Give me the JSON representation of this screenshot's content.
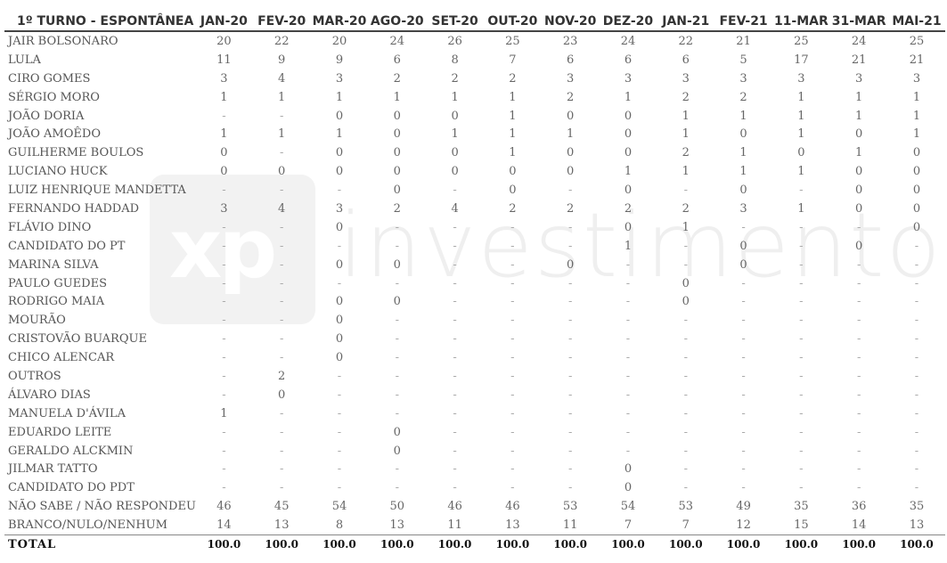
{
  "table": {
    "title": "1º TURNO - ESPONTÂNEA",
    "columns": [
      "JAN-20",
      "FEV-20",
      "MAR-20",
      "AGO-20",
      "SET-20",
      "OUT-20",
      "NOV-20",
      "DEZ-20",
      "JAN-21",
      "FEV-21",
      "11-MAR",
      "31-MAR",
      "MAI-21"
    ],
    "rows": [
      {
        "name": "JAIR BOLSONARO",
        "values": [
          "20",
          "22",
          "20",
          "24",
          "26",
          "25",
          "23",
          "24",
          "22",
          "21",
          "25",
          "24",
          "25"
        ]
      },
      {
        "name": "LULA",
        "values": [
          "11",
          "9",
          "9",
          "6",
          "8",
          "7",
          "6",
          "6",
          "6",
          "5",
          "17",
          "21",
          "21"
        ]
      },
      {
        "name": "CIRO GOMES",
        "values": [
          "3",
          "4",
          "3",
          "2",
          "2",
          "2",
          "3",
          "3",
          "3",
          "3",
          "3",
          "3",
          "3"
        ]
      },
      {
        "name": "SÉRGIO MORO",
        "values": [
          "1",
          "1",
          "1",
          "1",
          "1",
          "1",
          "2",
          "1",
          "2",
          "2",
          "1",
          "1",
          "1"
        ]
      },
      {
        "name": "JOÃO DORIA",
        "values": [
          "-",
          "-",
          "0",
          "0",
          "0",
          "1",
          "0",
          "0",
          "1",
          "1",
          "1",
          "1",
          "1"
        ]
      },
      {
        "name": "JOÃO AMOÊDO",
        "values": [
          "1",
          "1",
          "1",
          "0",
          "1",
          "1",
          "1",
          "0",
          "1",
          "0",
          "1",
          "0",
          "1"
        ]
      },
      {
        "name": "GUILHERME BOULOS",
        "values": [
          "0",
          "-",
          "0",
          "0",
          "0",
          "1",
          "0",
          "0",
          "2",
          "1",
          "0",
          "1",
          "0"
        ]
      },
      {
        "name": "LUCIANO HUCK",
        "values": [
          "0",
          "0",
          "0",
          "0",
          "0",
          "0",
          "0",
          "1",
          "1",
          "1",
          "1",
          "0",
          "0"
        ]
      },
      {
        "name": "LUIZ HENRIQUE MANDETTA",
        "values": [
          "-",
          "-",
          "-",
          "0",
          "-",
          "0",
          "-",
          "0",
          "-",
          "0",
          "-",
          "0",
          "0"
        ]
      },
      {
        "name": "FERNANDO HADDAD",
        "values": [
          "3",
          "4",
          "3",
          "2",
          "4",
          "2",
          "2",
          "2",
          "2",
          "3",
          "1",
          "0",
          "0"
        ]
      },
      {
        "name": "FLÁVIO DINO",
        "values": [
          "-",
          "-",
          "0",
          "-",
          "-",
          "-",
          "-",
          "0",
          "1",
          "-",
          "-",
          "-",
          "0"
        ]
      },
      {
        "name": "CANDIDATO DO PT",
        "values": [
          "-",
          "-",
          "-",
          "-",
          "-",
          "-",
          "-",
          "1",
          "-",
          "0",
          "-",
          "0",
          "-"
        ]
      },
      {
        "name": "MARINA SILVA",
        "values": [
          "-",
          "-",
          "0",
          "0",
          "-",
          "-",
          "0",
          "-",
          "-",
          "0",
          "-",
          "-",
          "-"
        ]
      },
      {
        "name": "PAULO GUEDES",
        "values": [
          "-",
          "-",
          "-",
          "-",
          "-",
          "-",
          "-",
          "-",
          "0",
          "-",
          "-",
          "-",
          "-"
        ]
      },
      {
        "name": "RODRIGO MAIA",
        "values": [
          "-",
          "-",
          "0",
          "0",
          "-",
          "-",
          "-",
          "-",
          "0",
          "-",
          "-",
          "-",
          "-"
        ]
      },
      {
        "name": "MOURÃO",
        "values": [
          "-",
          "-",
          "0",
          "-",
          "-",
          "-",
          "-",
          "-",
          "-",
          "-",
          "-",
          "-",
          "-"
        ]
      },
      {
        "name": "CRISTOVÃO BUARQUE",
        "values": [
          "-",
          "-",
          "0",
          "-",
          "-",
          "-",
          "-",
          "-",
          "-",
          "-",
          "-",
          "-",
          "-"
        ]
      },
      {
        "name": "CHICO ALENCAR",
        "values": [
          "-",
          "-",
          "0",
          "-",
          "-",
          "-",
          "-",
          "-",
          "-",
          "-",
          "-",
          "-",
          "-"
        ]
      },
      {
        "name": "OUTROS",
        "values": [
          "-",
          "2",
          "-",
          "-",
          "-",
          "-",
          "-",
          "-",
          "-",
          "-",
          "-",
          "-",
          "-"
        ]
      },
      {
        "name": "ÁLVARO DIAS",
        "values": [
          "-",
          "0",
          "-",
          "-",
          "-",
          "-",
          "-",
          "-",
          "-",
          "-",
          "-",
          "-",
          "-"
        ]
      },
      {
        "name": "MANUELA D'ÁVILA",
        "values": [
          "1",
          "-",
          "-",
          "-",
          "-",
          "-",
          "-",
          "-",
          "-",
          "-",
          "-",
          "-",
          "-"
        ]
      },
      {
        "name": "EDUARDO LEITE",
        "values": [
          "-",
          "-",
          "-",
          "0",
          "-",
          "-",
          "-",
          "-",
          "-",
          "-",
          "-",
          "-",
          "-"
        ]
      },
      {
        "name": "GERALDO ALCKMIN",
        "values": [
          "-",
          "-",
          "-",
          "0",
          "-",
          "-",
          "-",
          "-",
          "-",
          "-",
          "-",
          "-",
          "-"
        ]
      },
      {
        "name": "JILMAR TATTO",
        "values": [
          "-",
          "-",
          "-",
          "-",
          "-",
          "-",
          "-",
          "0",
          "-",
          "-",
          "-",
          "-",
          "-"
        ]
      },
      {
        "name": "CANDIDATO DO PDT",
        "values": [
          "-",
          "-",
          "-",
          "-",
          "-",
          "-",
          "-",
          "0",
          "-",
          "-",
          "-",
          "-",
          "-"
        ]
      },
      {
        "name": "NÃO SABE / NÃO RESPONDEU",
        "values": [
          "46",
          "45",
          "54",
          "50",
          "46",
          "46",
          "53",
          "54",
          "53",
          "49",
          "35",
          "36",
          "35"
        ]
      },
      {
        "name": "BRANCO/NULO/NENHUM",
        "values": [
          "14",
          "13",
          "8",
          "13",
          "11",
          "13",
          "11",
          "7",
          "7",
          "12",
          "15",
          "14",
          "13"
        ]
      }
    ],
    "total": {
      "name": "TOTAL",
      "values": [
        "100.0",
        "100.0",
        "100.0",
        "100.0",
        "100.0",
        "100.0",
        "100.0",
        "100.0",
        "100.0",
        "100.0",
        "100.0",
        "100.0",
        "100.0"
      ]
    }
  },
  "watermark": {
    "mark": "xp",
    "text": "investimentos"
  }
}
